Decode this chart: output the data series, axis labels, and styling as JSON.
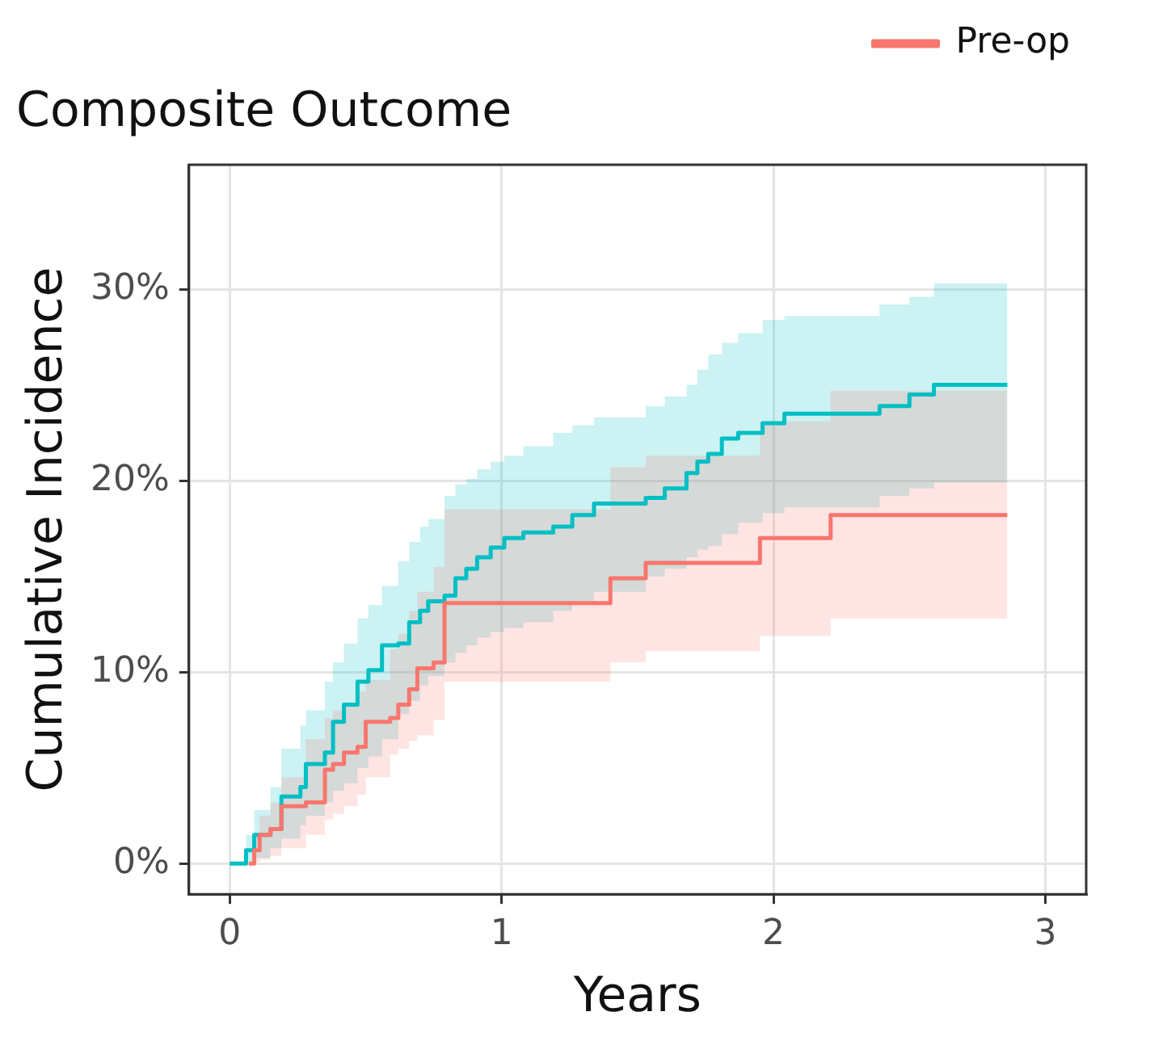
{
  "chart_data": {
    "type": "step",
    "title": "Composite Outcome",
    "xlabel": "Years",
    "ylabel": "Cumulative Incidence",
    "xlim": [
      -0.15,
      3.15
    ],
    "xticks": [
      0,
      1,
      2,
      3
    ],
    "ylim": [
      -1.6,
      36.5
    ],
    "yticks": [
      {
        "value": 0,
        "label": "0%"
      },
      {
        "value": 10,
        "label": "10%"
      },
      {
        "value": 20,
        "label": "20%"
      },
      {
        "value": 30,
        "label": "30%"
      }
    ],
    "grid": true,
    "legend": "top right",
    "marker": "none",
    "series": [
      {
        "name": "Pre-op",
        "color": "#f8766d",
        "x": [
          0.07,
          0.09,
          0.11,
          0.15,
          0.19,
          0.28,
          0.35,
          0.38,
          0.42,
          0.47,
          0.5,
          0.59,
          0.62,
          0.66,
          0.69,
          0.75,
          0.79,
          1.4,
          1.53,
          1.95,
          2.21,
          2.86
        ],
        "values": [
          0,
          0.7,
          1.5,
          1.8,
          3.0,
          3.2,
          4.9,
          5.2,
          5.8,
          6.1,
          7.4,
          7.6,
          8.3,
          9.1,
          10.2,
          10.5,
          13.6,
          14.9,
          15.7,
          17.0,
          18.2,
          18.2
        ],
        "lower": [
          0,
          0.1,
          0.2,
          0.4,
          0.8,
          1.5,
          2.3,
          2.6,
          3.0,
          3.6,
          4.5,
          5.7,
          6.0,
          6.4,
          6.7,
          7.5,
          9.5,
          10.5,
          11.1,
          11.9,
          12.8,
          12.8
        ],
        "upper": [
          0,
          1.5,
          2.5,
          3.2,
          4.5,
          6.5,
          7.6,
          8.0,
          8.4,
          9.0,
          9.6,
          11.2,
          12.0,
          13.2,
          14.2,
          15.5,
          18.5,
          20.7,
          21.3,
          23.1,
          24.7,
          24.7
        ]
      },
      {
        "color": "#00bfc4",
        "x": [
          0,
          0.06,
          0.09,
          0.15,
          0.19,
          0.26,
          0.28,
          0.35,
          0.38,
          0.42,
          0.47,
          0.51,
          0.56,
          0.62,
          0.66,
          0.7,
          0.73,
          0.79,
          0.83,
          0.87,
          0.91,
          0.96,
          1.01,
          1.08,
          1.19,
          1.26,
          1.34,
          1.53,
          1.6,
          1.68,
          1.72,
          1.76,
          1.81,
          1.87,
          1.96,
          2.04,
          2.39,
          2.5,
          2.59,
          2.86
        ],
        "values": [
          0,
          0.7,
          1.5,
          1.8,
          3.5,
          4.0,
          5.2,
          5.8,
          7.4,
          8.3,
          9.5,
          10.1,
          11.4,
          11.5,
          12.6,
          13.2,
          13.7,
          14.0,
          14.9,
          15.4,
          16.0,
          16.5,
          17.0,
          17.3,
          17.6,
          18.2,
          18.8,
          19.1,
          19.6,
          20.4,
          21.0,
          21.4,
          22.2,
          22.5,
          23.0,
          23.5,
          23.9,
          24.5,
          25.0,
          25.0
        ],
        "lower": [
          0,
          0.1,
          0.3,
          0.8,
          1.3,
          2.0,
          2.5,
          3.2,
          3.8,
          4.2,
          5.0,
          5.6,
          6.5,
          7.8,
          8.5,
          9.3,
          9.8,
          10.5,
          11.0,
          11.4,
          11.8,
          12.1,
          12.3,
          12.6,
          13.2,
          13.7,
          14.2,
          15.0,
          15.4,
          16.0,
          16.4,
          16.6,
          17.2,
          17.8,
          18.3,
          18.6,
          19.2,
          19.6,
          19.9,
          19.9
        ],
        "upper": [
          0,
          1.5,
          2.8,
          4.0,
          6.0,
          7.2,
          8.0,
          9.5,
          10.5,
          11.5,
          12.8,
          13.5,
          14.5,
          15.8,
          16.8,
          17.6,
          18.0,
          19.2,
          19.8,
          20.1,
          20.6,
          21.0,
          21.3,
          21.8,
          22.5,
          22.9,
          23.3,
          23.9,
          24.4,
          25.0,
          25.8,
          26.6,
          27.2,
          27.7,
          28.4,
          28.6,
          29.2,
          29.6,
          30.3,
          30.3
        ]
      }
    ]
  }
}
